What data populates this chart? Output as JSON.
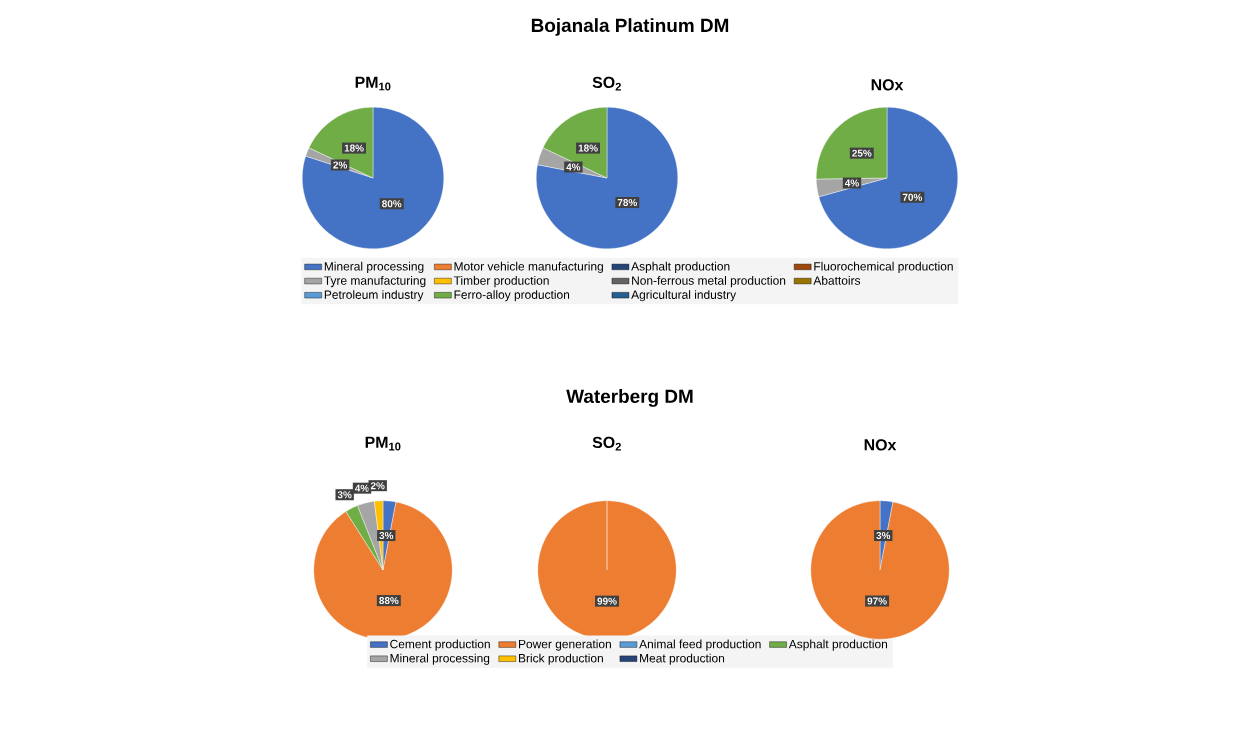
{
  "chart_data": [
    {
      "type": "pie",
      "title": "Bojanala Platinum DM",
      "legend": "bottom",
      "categories": [
        "Mineral processing",
        "Motor vehicle manufacturing",
        "Asphalt production",
        "Fluorochemical production",
        "Tyre manufacturing",
        "Timber production",
        "Non-ferrous metal production",
        "Abattoirs",
        "Petroleum industry",
        "Ferro-alloy production",
        "Agricultural industry"
      ],
      "colors": [
        "#4472c4",
        "#ed7d31",
        "#264478",
        "#9e480e",
        "#a5a5a5",
        "#ffc000",
        "#636363",
        "#997300",
        "#5b9bd5",
        "#70ad47",
        "#255e91"
      ],
      "series": [
        {
          "name": "PM$_{10}$",
          "values": [
            80,
            null,
            null,
            null,
            2,
            null,
            null,
            null,
            null,
            18,
            null
          ],
          "value_labels": [
            "80%",
            null,
            null,
            null,
            "2%",
            null,
            null,
            null,
            null,
            "18%",
            null
          ]
        },
        {
          "name": "SO$_{2}$",
          "values": [
            78,
            null,
            null,
            null,
            4,
            null,
            null,
            null,
            null,
            18,
            null
          ],
          "value_labels": [
            "78%",
            null,
            null,
            null,
            "4%",
            null,
            null,
            null,
            null,
            "18%",
            null
          ]
        },
        {
          "name": "NOx",
          "values": [
            70,
            null,
            null,
            null,
            4,
            null,
            null,
            null,
            null,
            25,
            null
          ],
          "value_labels": [
            "70%",
            null,
            null,
            null,
            "4%",
            null,
            null,
            null,
            null,
            "25%",
            null
          ]
        }
      ]
    },
    {
      "type": "pie",
      "title": "Waterberg DM",
      "legend": "bottom",
      "categories": [
        "Cement production",
        "Power generation",
        "Animal feed production",
        "Asphalt production",
        "Mineral processing",
        "Brick production",
        "Meat production"
      ],
      "colors": [
        "#4472c4",
        "#ed7d31",
        "#5b9bd5",
        "#70ad47",
        "#a5a5a5",
        "#ffc000",
        "#264478"
      ],
      "series": [
        {
          "name": "PM$_{10}$",
          "values": [
            3,
            88,
            null,
            3,
            4,
            2,
            null
          ],
          "value_labels": [
            "3%",
            "88%",
            null,
            "3%",
            "4%",
            "2%",
            null
          ]
        },
        {
          "name": "SO$_{2}$",
          "values": [
            null,
            99,
            null,
            null,
            null,
            null,
            null
          ],
          "value_labels": [
            null,
            "99%",
            null,
            null,
            null,
            null,
            null
          ]
        },
        {
          "name": "NOx",
          "values": [
            3,
            97,
            null,
            null,
            null,
            null,
            null
          ],
          "value_labels": [
            "3%",
            "97%",
            null,
            null,
            null,
            null,
            null
          ]
        }
      ]
    }
  ]
}
